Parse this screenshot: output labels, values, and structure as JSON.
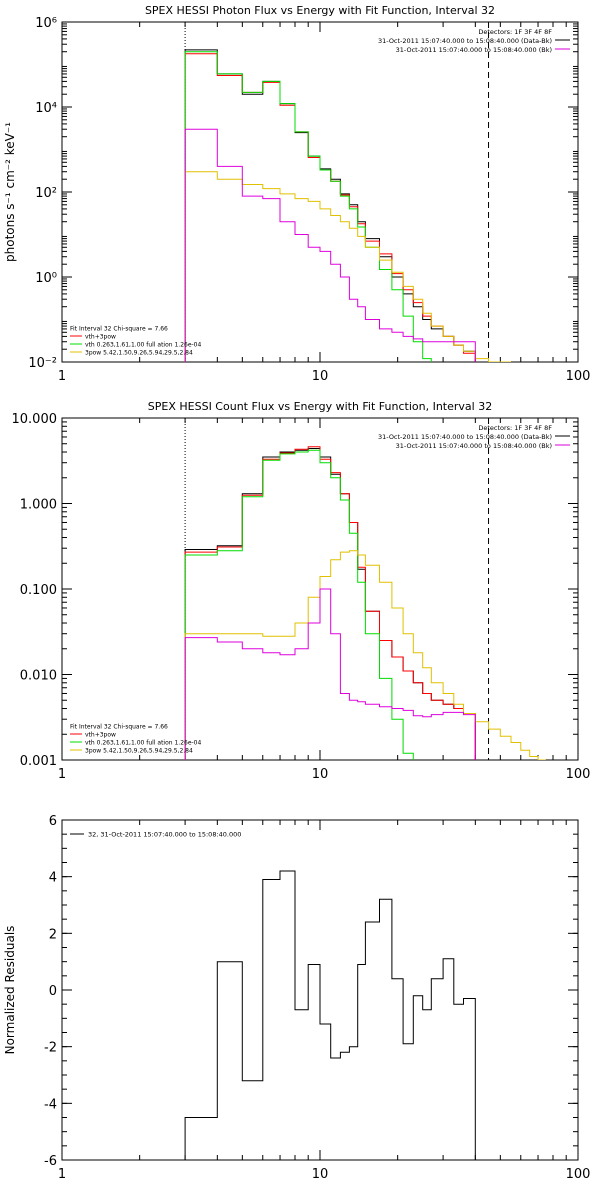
{
  "chart_data": [
    {
      "type": "line",
      "title": "SPEX HESSI Photon Flux vs Energy with Fit Function, Interval 32",
      "xlabel": "",
      "ylabel": "photons s⁻¹ cm⁻² keV⁻¹",
      "xscale": "log",
      "yscale": "log",
      "xlim": [
        1,
        100
      ],
      "ylim": [
        0.01,
        1000000
      ],
      "x_ticks": [
        {
          "v": 1,
          "label": "1"
        },
        {
          "v": 10,
          "label": "10"
        },
        {
          "v": 100,
          "label": "100"
        }
      ],
      "y_ticks": [
        {
          "v": 0.01,
          "label": "10⁻²"
        },
        {
          "v": 1,
          "label": "10⁰"
        },
        {
          "v": 100,
          "label": "10²"
        },
        {
          "v": 10000,
          "label": "10⁴"
        },
        {
          "v": 1000000,
          "label": "10⁶"
        }
      ],
      "fit_range": [
        3,
        45
      ],
      "legend_right": [
        "Detectors: 1F 3F 4F 8F",
        "31-Oct-2011 15:07:40.000 to 15:08:40.000 (Data-Bk)",
        "31-Oct-2011 15:07:40.000 to 15:08:40.000 (Bk)"
      ],
      "legend_left": [
        "Fit Interval 32   Chi-square = 7.66",
        "vth+3pow",
        "vth 0.263,1.61,1.00  full ation 1.26e-04",
        "3pow 5.42,1.50,9.26,5.94,29.5,2.84"
      ],
      "edges": [
        3,
        4,
        5,
        6,
        7,
        8,
        9,
        10,
        11,
        12,
        13,
        14,
        15,
        17,
        19,
        21,
        23,
        25,
        27,
        30,
        33,
        36,
        40,
        45,
        50,
        55,
        60
      ],
      "series": [
        {
          "name": "Data-Bk",
          "color": "#000000",
          "values": [
            220000,
            60000,
            20000,
            40000,
            12000,
            2500,
            700,
            350,
            200,
            90,
            50,
            20,
            8,
            3,
            1,
            0.4,
            0.2,
            0.1,
            0.06,
            0.04,
            0.025,
            0.018
          ]
        },
        {
          "name": "vth+3pow",
          "color": "#ff0000",
          "values": [
            180000,
            55000,
            22000,
            38000,
            11000,
            2600,
            650,
            330,
            180,
            85,
            45,
            18,
            7,
            3.5,
            1.2,
            0.5,
            0.25,
            0.12,
            0.07,
            0.04,
            0.025,
            0.016
          ]
        },
        {
          "name": "vth",
          "color": "#00dd00",
          "values": [
            200000,
            60000,
            22000,
            40000,
            12000,
            2600,
            700,
            330,
            180,
            80,
            40,
            15,
            5,
            1.5,
            0.5,
            0.12,
            0.03,
            0.012
          ]
        },
        {
          "name": "3pow",
          "color": "#e0c000",
          "values": [
            300,
            200,
            150,
            120,
            90,
            70,
            60,
            40,
            28,
            20,
            14,
            9,
            5,
            2.5,
            1.3,
            0.6,
            0.3,
            0.14,
            0.07,
            0.04,
            0.025,
            0.018,
            0.012,
            0.009,
            0.006
          ]
        },
        {
          "name": "Bk",
          "color": "#dd00dd",
          "values": [
            3000,
            400,
            80,
            70,
            20,
            10,
            5,
            4,
            2,
            1,
            0.3,
            0.2,
            0.1,
            0.06,
            0.05,
            0.04,
            0.035,
            0.03,
            0.03,
            0.03,
            0.03,
            0.03
          ]
        }
      ]
    },
    {
      "type": "line",
      "title": "SPEX HESSI Count Flux vs Energy with Fit Function, Interval 32",
      "xlabel": "",
      "ylabel": "",
      "xscale": "log",
      "yscale": "log",
      "xlim": [
        1,
        100
      ],
      "ylim": [
        0.001,
        10
      ],
      "x_ticks": [
        {
          "v": 1,
          "label": "1"
        },
        {
          "v": 10,
          "label": "10"
        },
        {
          "v": 100,
          "label": "100"
        }
      ],
      "y_ticks": [
        {
          "v": 0.001,
          "label": "0.001"
        },
        {
          "v": 0.01,
          "label": "0.010"
        },
        {
          "v": 0.1,
          "label": "0.100"
        },
        {
          "v": 1,
          "label": "1.000"
        },
        {
          "v": 10,
          "label": "10.000"
        }
      ],
      "fit_range": [
        3,
        45
      ],
      "legend_right": [
        "Detectors: 1F 3F 4F 8F",
        "31-Oct-2011 15:07:40.000 to 15:08:40.000 (Data-Bk)",
        "31-Oct-2011 15:07:40.000 to 15:08:40.000 (Bk)"
      ],
      "legend_left": [
        "Fit Interval 32   Chi-square = 7.66",
        "vth+3pow",
        "vth 0.263,1.61,1.00  full ation 1.26e-04",
        "3pow 5.42,1.50,9.26,5.94,29.5,2.84"
      ],
      "edges": [
        3,
        4,
        5,
        6,
        7,
        8,
        9,
        10,
        11,
        12,
        13,
        14,
        15,
        17,
        19,
        21,
        23,
        25,
        27,
        30,
        33,
        36,
        40,
        45,
        50,
        55,
        60,
        65,
        70,
        75
      ],
      "series": [
        {
          "name": "Data-Bk",
          "color": "#000000",
          "values": [
            0.29,
            0.32,
            1.3,
            3.5,
            4.0,
            4.2,
            4.4,
            3.5,
            2.2,
            1.3,
            0.6,
            0.17,
            0.055,
            0.025,
            0.016,
            0.011,
            0.008,
            0.006,
            0.005,
            0.0045,
            0.004,
            0.0035
          ]
        },
        {
          "name": "vth+3pow",
          "color": "#ff0000",
          "values": [
            0.27,
            0.31,
            1.25,
            3.3,
            3.9,
            4.3,
            4.6,
            3.3,
            2.3,
            1.3,
            0.6,
            0.18,
            0.055,
            0.025,
            0.016,
            0.011,
            0.008,
            0.006,
            0.005,
            0.0045,
            0.004,
            0.0035
          ]
        },
        {
          "name": "vth",
          "color": "#00dd00",
          "values": [
            0.25,
            0.28,
            1.2,
            3.2,
            3.8,
            4.0,
            4.2,
            3.0,
            2.0,
            1.1,
            0.45,
            0.12,
            0.03,
            0.009,
            0.003,
            0.0012
          ]
        },
        {
          "name": "3pow",
          "color": "#e0c000",
          "values": [
            0.03,
            0.03,
            0.03,
            0.028,
            0.028,
            0.04,
            0.08,
            0.14,
            0.22,
            0.27,
            0.28,
            0.25,
            0.19,
            0.12,
            0.06,
            0.03,
            0.018,
            0.012,
            0.008,
            0.006,
            0.0045,
            0.0035,
            0.0028,
            0.0023,
            0.0019,
            0.0016,
            0.0013,
            0.0011,
            0.001
          ]
        },
        {
          "name": "Bk",
          "color": "#dd00dd",
          "values": [
            0.027,
            0.024,
            0.02,
            0.018,
            0.017,
            0.02,
            0.04,
            0.1,
            0.03,
            0.006,
            0.005,
            0.0048,
            0.0045,
            0.0042,
            0.004,
            0.0038,
            0.0033,
            0.0032,
            0.0034,
            0.0036,
            0.0036,
            0.0034
          ]
        }
      ]
    },
    {
      "type": "line",
      "title": "",
      "xlabel": "",
      "ylabel": "Normalized Residuals",
      "xscale": "log",
      "yscale": "linear",
      "xlim": [
        1,
        100
      ],
      "ylim": [
        -6,
        6
      ],
      "x_ticks": [
        {
          "v": 1,
          "label": "1"
        },
        {
          "v": 10,
          "label": "10"
        },
        {
          "v": 100,
          "label": "100"
        }
      ],
      "y_ticks": [
        {
          "v": -6,
          "label": "-6"
        },
        {
          "v": -4,
          "label": "-4"
        },
        {
          "v": -2,
          "label": "-2"
        },
        {
          "v": 0,
          "label": "0"
        },
        {
          "v": 2,
          "label": "2"
        },
        {
          "v": 4,
          "label": "4"
        },
        {
          "v": 6,
          "label": "6"
        }
      ],
      "legend": [
        "32, 31-Oct-2011 15:07:40.000 to 15:08:40.000"
      ],
      "edges": [
        3,
        4,
        5,
        6,
        7,
        8,
        9,
        10,
        11,
        12,
        13,
        14,
        15,
        17,
        19,
        21,
        23,
        25,
        27,
        30,
        33,
        36,
        40,
        45
      ],
      "series": [
        {
          "name": "32, 31-Oct-2011 15:07:40.000 to 15:08:40.000",
          "color": "#000000",
          "values": [
            -4.5,
            1.0,
            -3.2,
            3.9,
            4.2,
            -0.7,
            0.9,
            -1.2,
            -2.4,
            -2.2,
            -2.0,
            0.9,
            2.4,
            3.2,
            0.4,
            -1.9,
            -0.2,
            -0.7,
            0.4,
            1.1,
            -0.5,
            -0.3,
            -6.0
          ]
        }
      ]
    }
  ]
}
